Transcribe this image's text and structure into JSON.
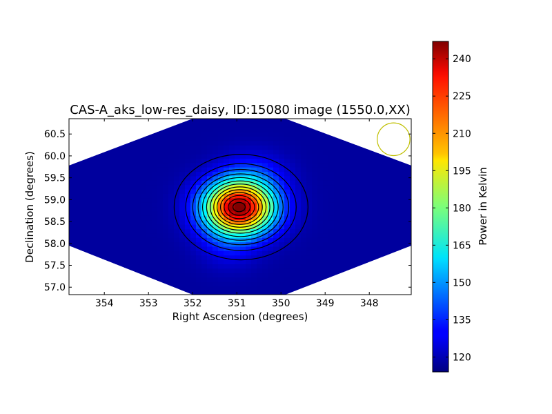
{
  "chart_data": {
    "type": "heatmap",
    "title": "CAS-A_aks_low-res_daisy, ID:15080 image (1550.0,XX)",
    "xlabel": "Right Ascension (degrees)",
    "ylabel": "Declination (degrees)",
    "xlim": [
      354.8,
      347.05
    ],
    "ylim": [
      56.83,
      60.85
    ],
    "x_ticks": [
      354,
      353,
      352,
      351,
      350,
      349,
      348
    ],
    "y_ticks": [
      57.0,
      57.5,
      58.0,
      58.5,
      59.0,
      59.5,
      60.0,
      60.5
    ],
    "x_tick_labels": [
      "354",
      "353",
      "352",
      "351",
      "350",
      "349",
      "348"
    ],
    "y_tick_labels": [
      "57.0",
      "57.5",
      "58.0",
      "58.5",
      "59.0",
      "59.5",
      "60.0",
      "60.5"
    ],
    "colormap": "jet",
    "background_level": 118,
    "peak": {
      "ra": 350.95,
      "dec": 58.83,
      "value": 247
    },
    "contour_levels": [
      125,
      135,
      145,
      155,
      165,
      175,
      185,
      195,
      205,
      215,
      225,
      235,
      243
    ],
    "beam_circle": {
      "ra": 347.45,
      "dec": 60.38,
      "radius_deg": 0.37,
      "color": "#bfbf00"
    },
    "colorbar": {
      "label": "Power in Kelvin",
      "min": 114,
      "max": 247,
      "ticks": [
        120,
        135,
        150,
        165,
        180,
        195,
        210,
        225,
        240
      ],
      "tick_labels": [
        "120",
        "135",
        "150",
        "165",
        "180",
        "195",
        "210",
        "225",
        "240"
      ]
    }
  }
}
